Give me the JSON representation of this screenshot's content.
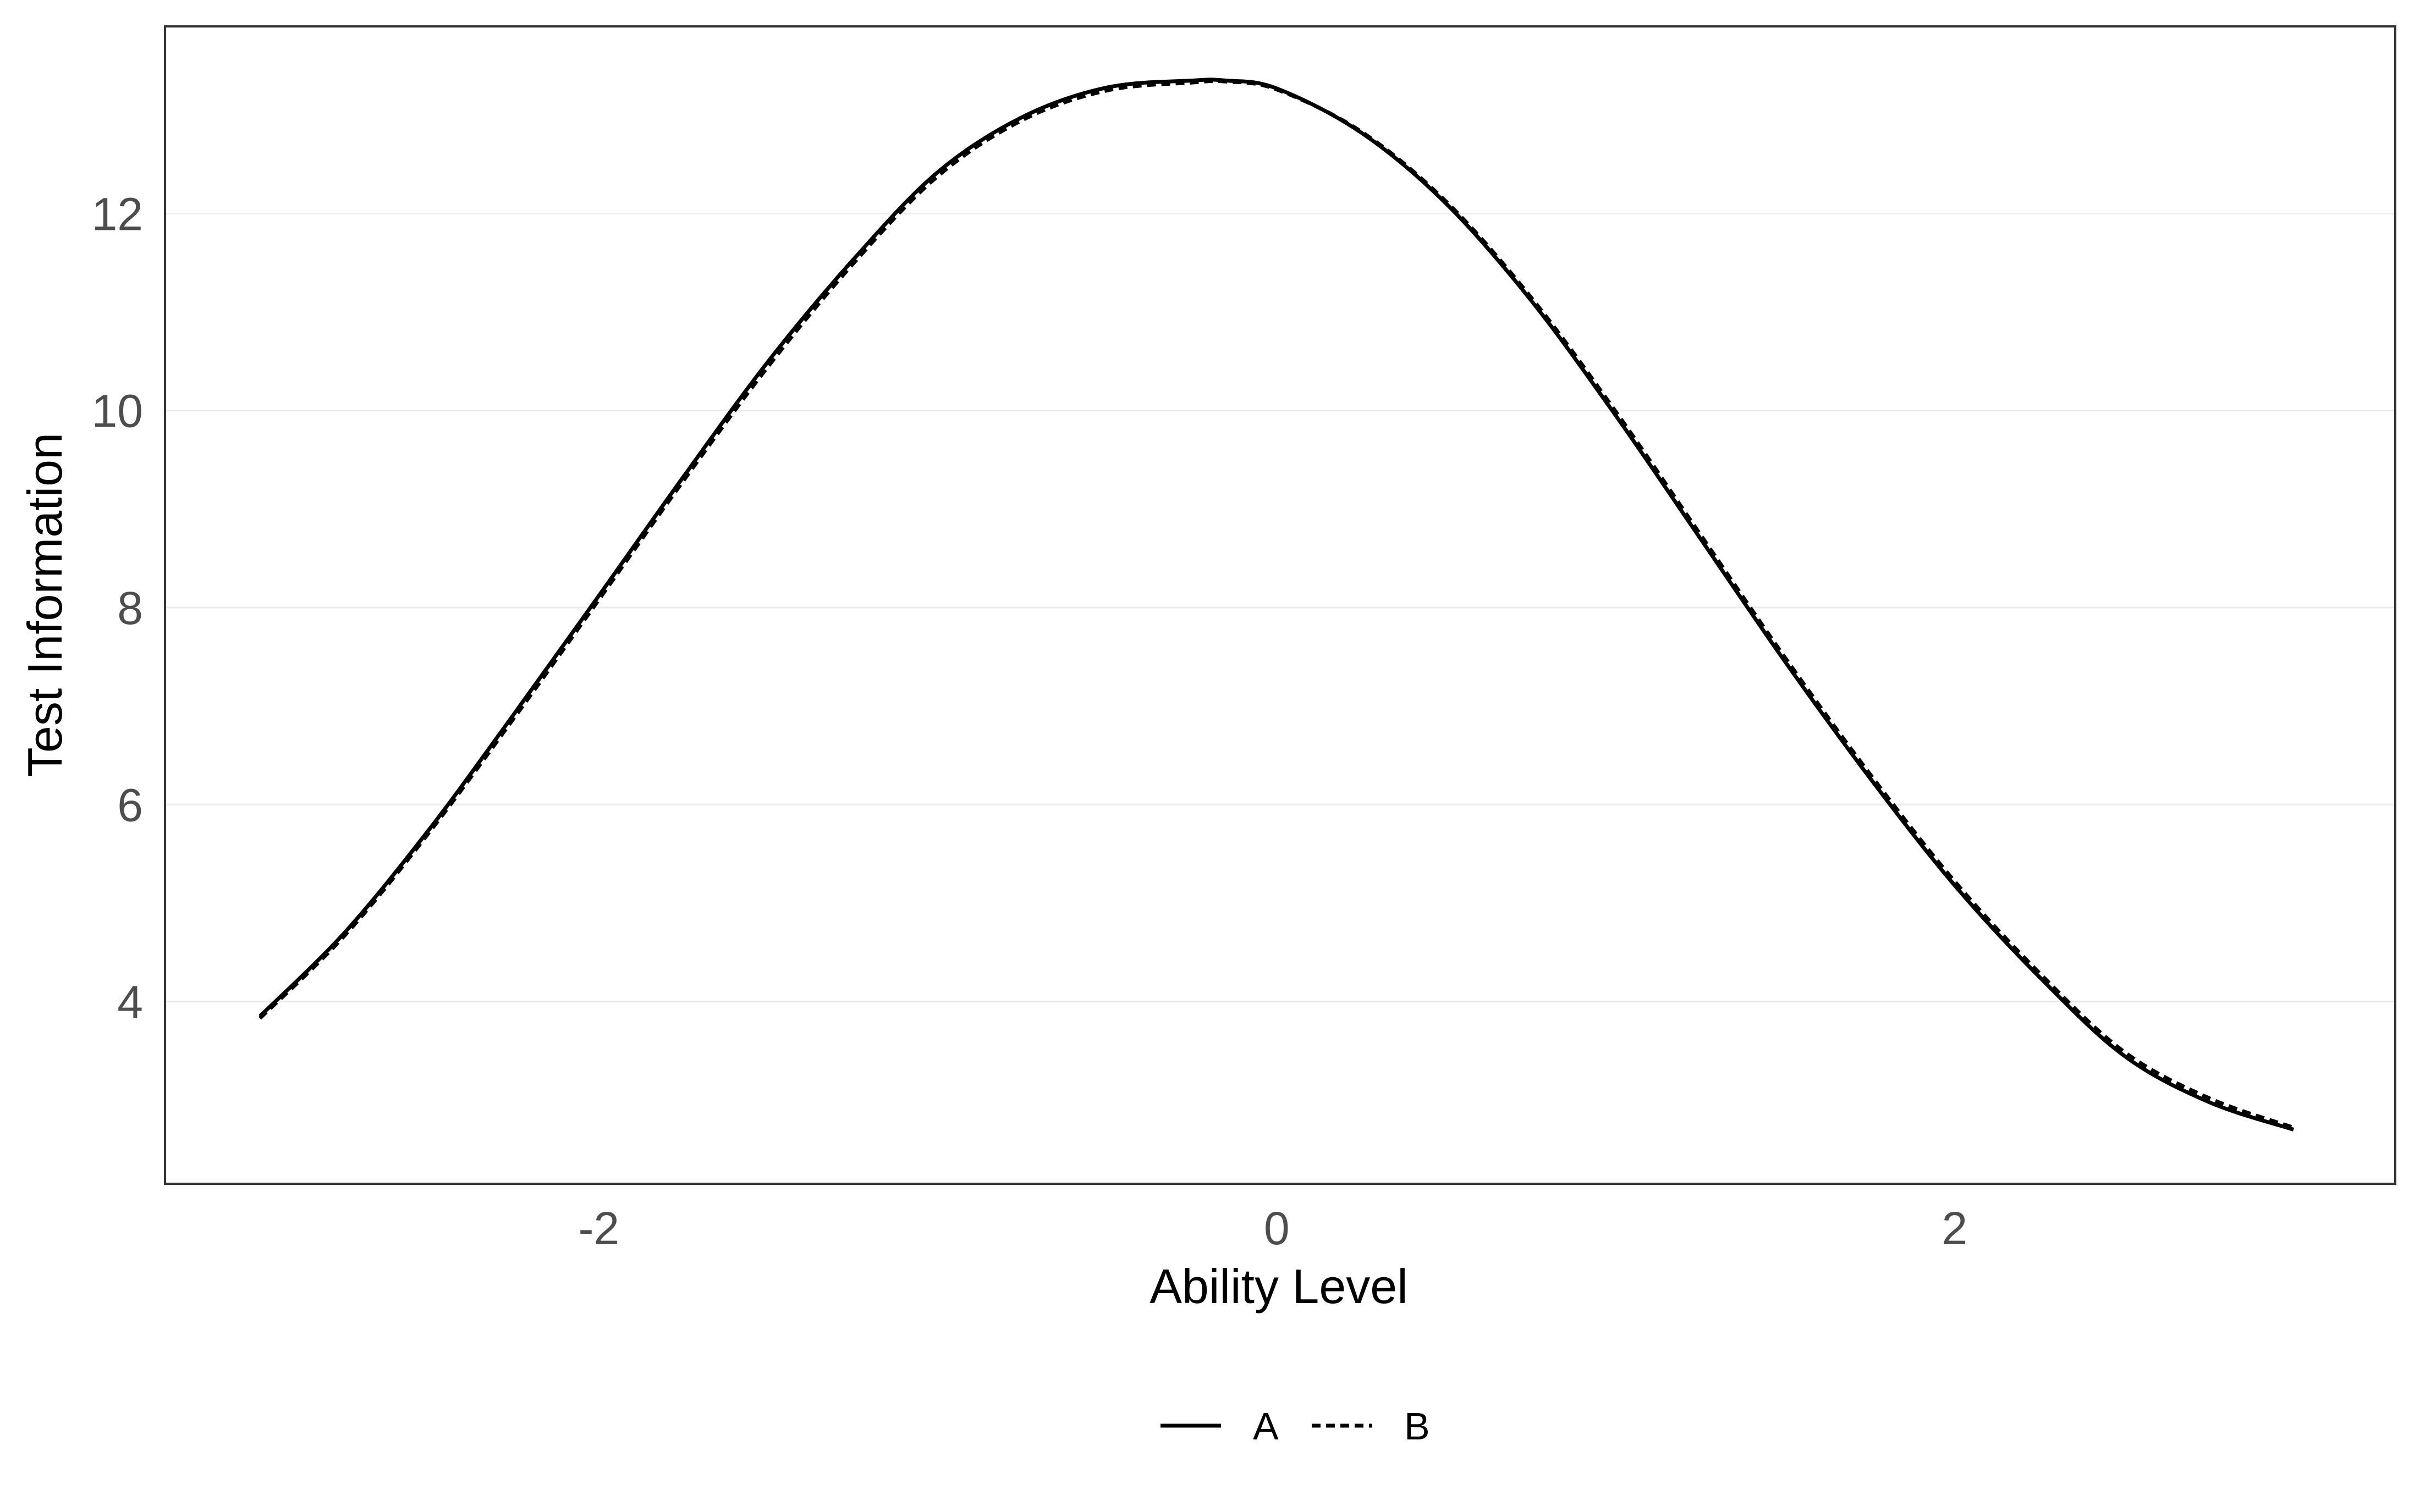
{
  "chart_data": {
    "type": "line",
    "title": "",
    "xlabel": "Ability Level",
    "ylabel": "Test Information",
    "xlim": [
      -3.28,
      3.3
    ],
    "ylim": [
      2.15,
      13.9
    ],
    "x_ticks": [
      -2,
      0,
      2
    ],
    "x_tick_labels": [
      "-2",
      "0",
      "2"
    ],
    "y_ticks": [
      4,
      6,
      8,
      10,
      12
    ],
    "y_tick_labels": [
      "4",
      "6",
      "8",
      "10",
      "12"
    ],
    "grid": "horizontal major",
    "legend_position": "bottom",
    "x": [
      -3.0,
      -2.75,
      -2.5,
      -2.25,
      -2.0,
      -1.75,
      -1.5,
      -1.25,
      -1.0,
      -0.75,
      -0.5,
      -0.25,
      -0.15,
      0.0,
      0.25,
      0.5,
      0.75,
      1.0,
      1.25,
      1.5,
      1.75,
      2.0,
      2.25,
      2.5,
      2.75,
      3.0
    ],
    "series": [
      {
        "name": "A",
        "line_style": "solid",
        "values": [
          3.85,
          4.7,
          5.75,
          6.92,
          8.12,
          9.33,
          10.5,
          11.53,
          12.42,
          12.98,
          13.28,
          13.35,
          13.35,
          13.27,
          12.82,
          12.1,
          11.12,
          9.95,
          8.7,
          7.45,
          6.27,
          5.18,
          4.25,
          3.45,
          2.98,
          2.7
        ]
      },
      {
        "name": "B",
        "line_style": "dashed",
        "values": [
          3.83,
          4.67,
          5.72,
          6.88,
          8.08,
          9.29,
          10.45,
          11.49,
          12.38,
          12.95,
          13.25,
          13.33,
          13.34,
          13.26,
          12.83,
          12.12,
          11.15,
          9.99,
          8.74,
          7.49,
          6.31,
          5.22,
          4.29,
          3.49,
          3.02,
          2.72
        ]
      }
    ],
    "colors": {
      "line": "#000000",
      "grid": "#ebebeb",
      "border": "#333333",
      "tick_text": "#4d4d4d"
    }
  }
}
